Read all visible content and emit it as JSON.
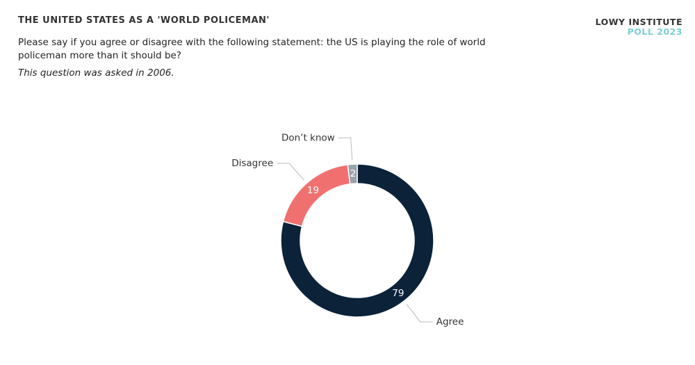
{
  "chart_data": {
    "type": "donut",
    "title": "THE UNITED STATES AS A 'WORLD POLICEMAN'",
    "subtitle": "Please say if you agree or disagree with the following statement: the US is playing the role of world policeman more than it should be?",
    "note": "This question was asked in 2006.",
    "categories": [
      "Agree",
      "Disagree",
      "Don’t know"
    ],
    "values": [
      79,
      19,
      2
    ],
    "colors": [
      "#0b2239",
      "#f07070",
      "#9aa3ab"
    ]
  },
  "branding": {
    "name": "LOWY INSTITUTE",
    "edition": "POLL 2023"
  }
}
